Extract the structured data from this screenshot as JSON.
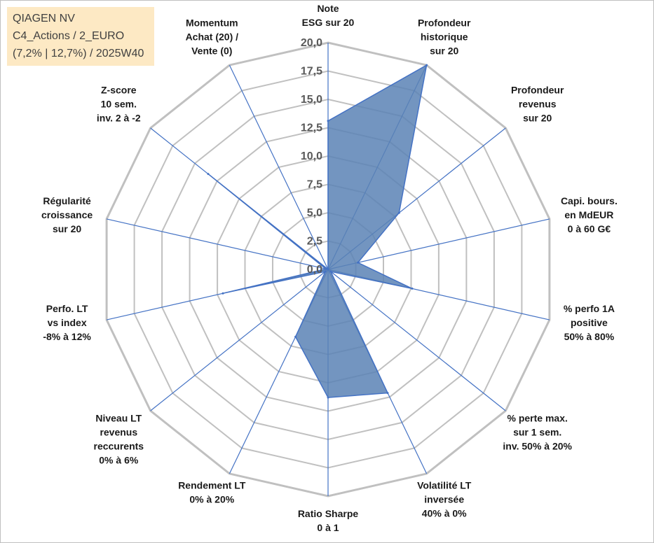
{
  "header": {
    "line1": "QIAGEN NV",
    "line2": "C4_Actions / 2_EURO",
    "line3": "(7,2% | 12,7%) / 2025W40"
  },
  "chart_data": {
    "type": "radar",
    "rmin": 0,
    "rmax": 20,
    "ticks": [
      "0,0",
      "2,5",
      "5,0",
      "7,5",
      "10,0",
      "12,5",
      "15,0",
      "17,5",
      "20,0"
    ],
    "grid": true,
    "colors": {
      "grid": "#c0c0c0",
      "spoke": "#4472c4",
      "fill": "#5b82b5",
      "stroke": "#4472c4"
    },
    "axes": [
      {
        "lines": [
          "Note",
          "ESG sur 20"
        ]
      },
      {
        "lines": [
          "Profondeur",
          "historique",
          "sur 20"
        ]
      },
      {
        "lines": [
          "Profondeur",
          "revenus",
          "sur 20"
        ]
      },
      {
        "lines": [
          "Capi. bours.",
          "en MdEUR",
          "0 à 60 G€"
        ]
      },
      {
        "lines": [
          "% perfo 1A",
          "positive",
          "50% à 80%"
        ]
      },
      {
        "lines": [
          "% perte max.",
          "sur 1 sem.",
          "inv. 50% à 20%"
        ]
      },
      {
        "lines": [
          "Volatilité LT",
          "inversée",
          "40% à 0%"
        ]
      },
      {
        "lines": [
          "Ratio Sharpe",
          "0 à 1"
        ]
      },
      {
        "lines": [
          "Rendement LT",
          "0% à 20%"
        ]
      },
      {
        "lines": [
          "Niveau LT",
          "revenus",
          "reccurents",
          "0% à 6%"
        ]
      },
      {
        "lines": [
          "Perfo. LT",
          "vs index",
          "-8% à 12%"
        ]
      },
      {
        "lines": [
          "Régularité",
          "croissance",
          "sur 20"
        ]
      },
      {
        "lines": [
          "Z-score",
          "10 sem.",
          "inv. 2 à -2"
        ]
      },
      {
        "lines": [
          "Momentum",
          "Achat (20) /",
          "Vente (0)"
        ]
      }
    ],
    "series": [
      {
        "values": [
          13.1,
          20,
          8.0,
          2.7,
          7.6,
          0.3,
          12.1,
          11.3,
          6.6,
          0.3,
          9.5,
          0.2,
          13.5,
          0
        ]
      }
    ]
  }
}
